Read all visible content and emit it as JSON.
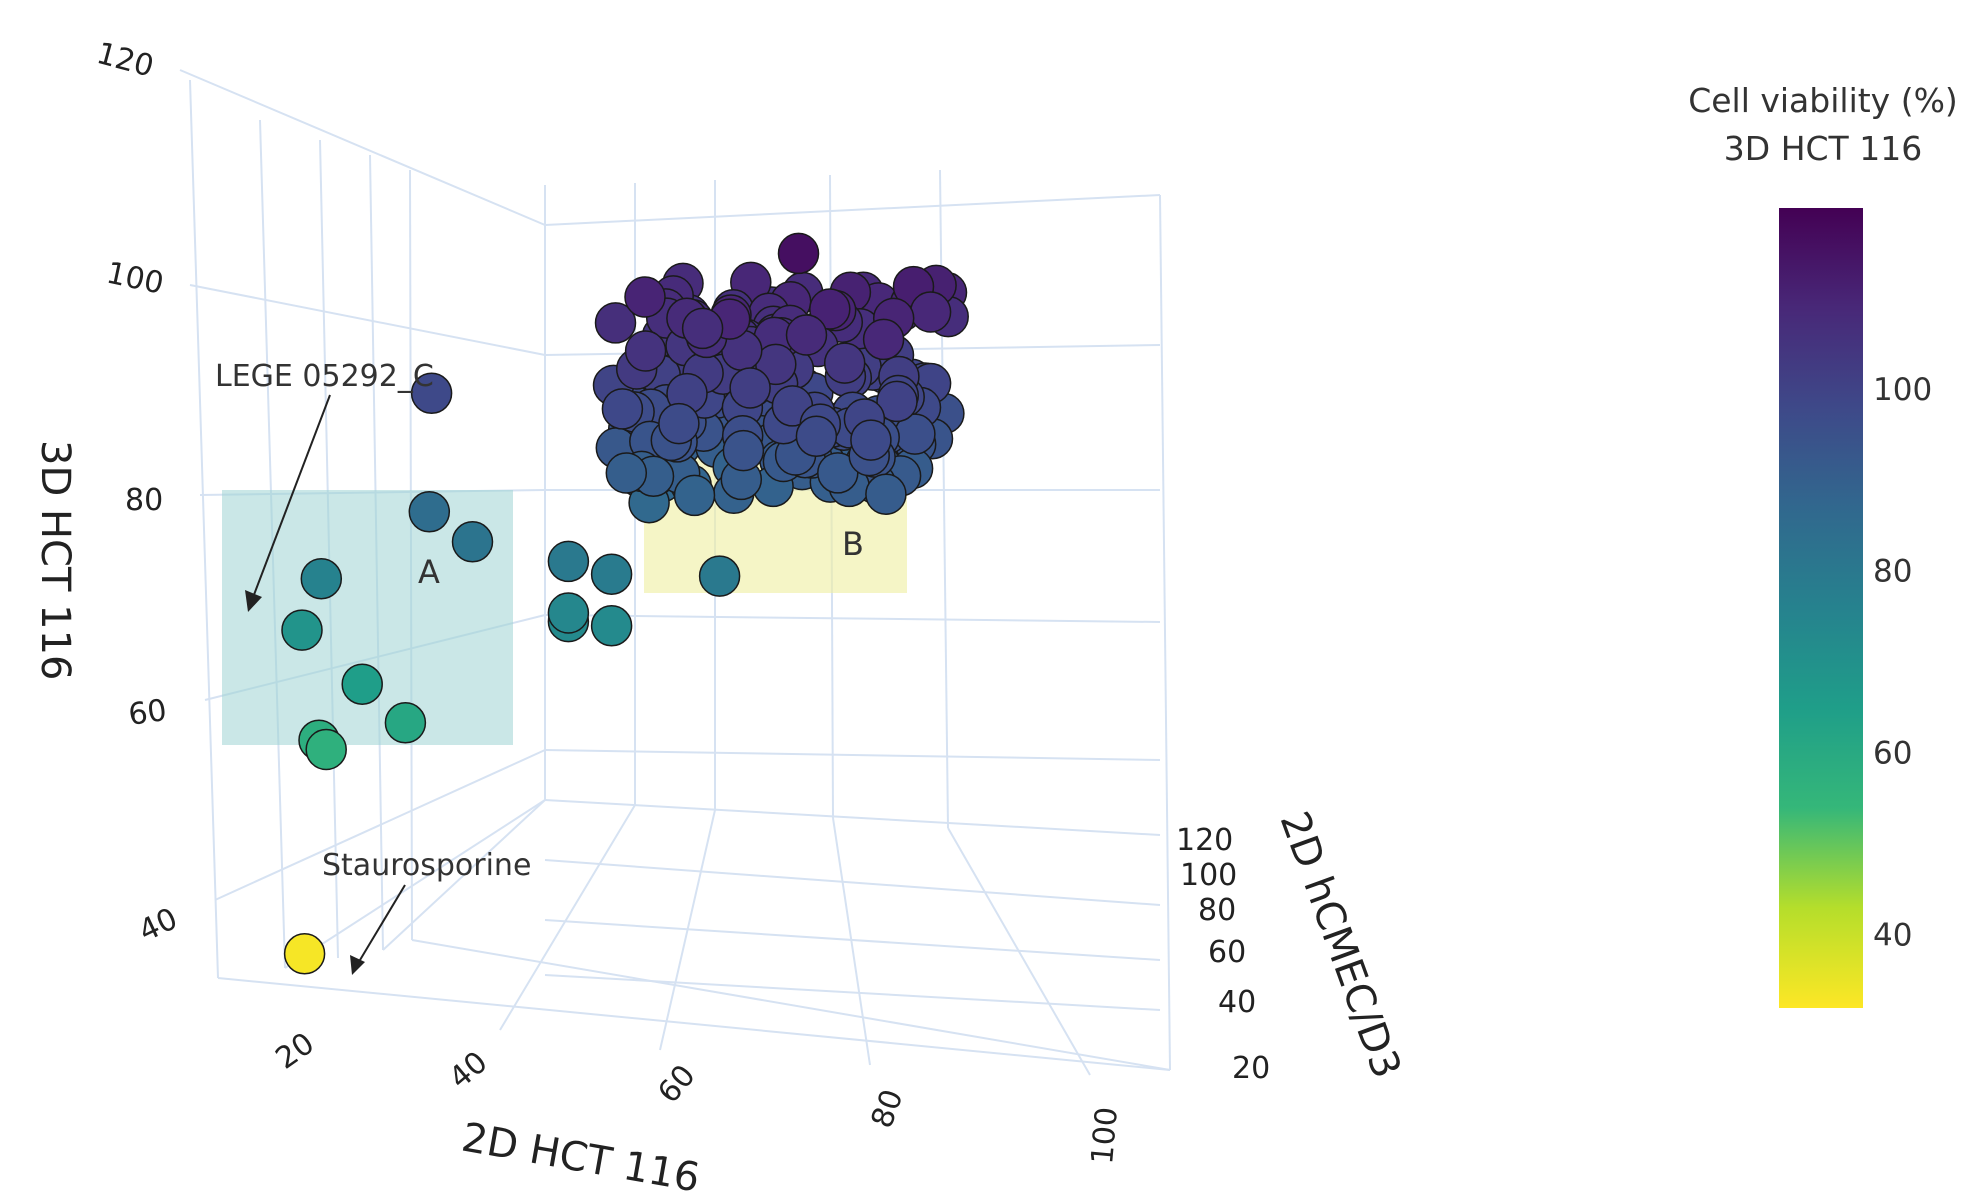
{
  "chart_data": {
    "type": "scatter3d",
    "axes": {
      "x": {
        "label": "2D HCT 116",
        "ticks": [
          "20",
          "40",
          "60",
          "80",
          "100"
        ]
      },
      "y": {
        "label": "2D hCMEC/D3",
        "ticks": [
          "20",
          "40",
          "60",
          "80",
          "100",
          "120"
        ]
      },
      "z": {
        "label": "3D HCT 116",
        "ticks": [
          "40",
          "60",
          "80",
          "100",
          "120"
        ]
      }
    },
    "colorbar": {
      "title_line1": "Cell viability (%)",
      "title_line2": "3D HCT 116",
      "ticks": [
        "40",
        "60",
        "80",
        "100"
      ],
      "range": [
        32,
        120
      ],
      "colors": [
        "#fde725",
        "#b5de2b",
        "#35b779",
        "#1f9e89",
        "#26828e",
        "#31688e",
        "#3e4989",
        "#482878",
        "#440154"
      ]
    },
    "regions": [
      {
        "name": "A",
        "color": "#9fd3d3"
      },
      {
        "name": "B",
        "color": "#eeeea0"
      }
    ],
    "annotations": [
      {
        "text": "LEGE 05292_C"
      },
      {
        "text": "Staurosporine"
      }
    ],
    "points": [
      {
        "x": 18,
        "y": 50,
        "z": 33
      },
      {
        "x": 15,
        "y": 60,
        "z": 69
      },
      {
        "x": 19,
        "y": 55,
        "z": 76
      },
      {
        "x": 20,
        "y": 50,
        "z": 58
      },
      {
        "x": 21,
        "y": 50,
        "z": 57
      },
      {
        "x": 26,
        "y": 50,
        "z": 65
      },
      {
        "x": 32,
        "y": 50,
        "z": 61
      },
      {
        "x": 34,
        "y": 55,
        "z": 85
      },
      {
        "x": 40,
        "y": 55,
        "z": 82
      },
      {
        "x": 33,
        "y": 60,
        "z": 98
      },
      {
        "x": 52,
        "y": 60,
        "z": 80
      },
      {
        "x": 52,
        "y": 60,
        "z": 73
      },
      {
        "x": 52,
        "y": 60,
        "z": 74
      },
      {
        "x": 58,
        "y": 60,
        "z": 73
      },
      {
        "x": 58,
        "y": 60,
        "z": 79
      },
      {
        "x": 73,
        "y": 60,
        "z": 80
      },
      {
        "x": 60,
        "y": 70,
        "z": 110
      },
      {
        "x": 80,
        "y": 75,
        "z": 116
      },
      {
        "x": 68,
        "y": 70,
        "z": 107
      }
    ],
    "cluster_count": 230
  }
}
